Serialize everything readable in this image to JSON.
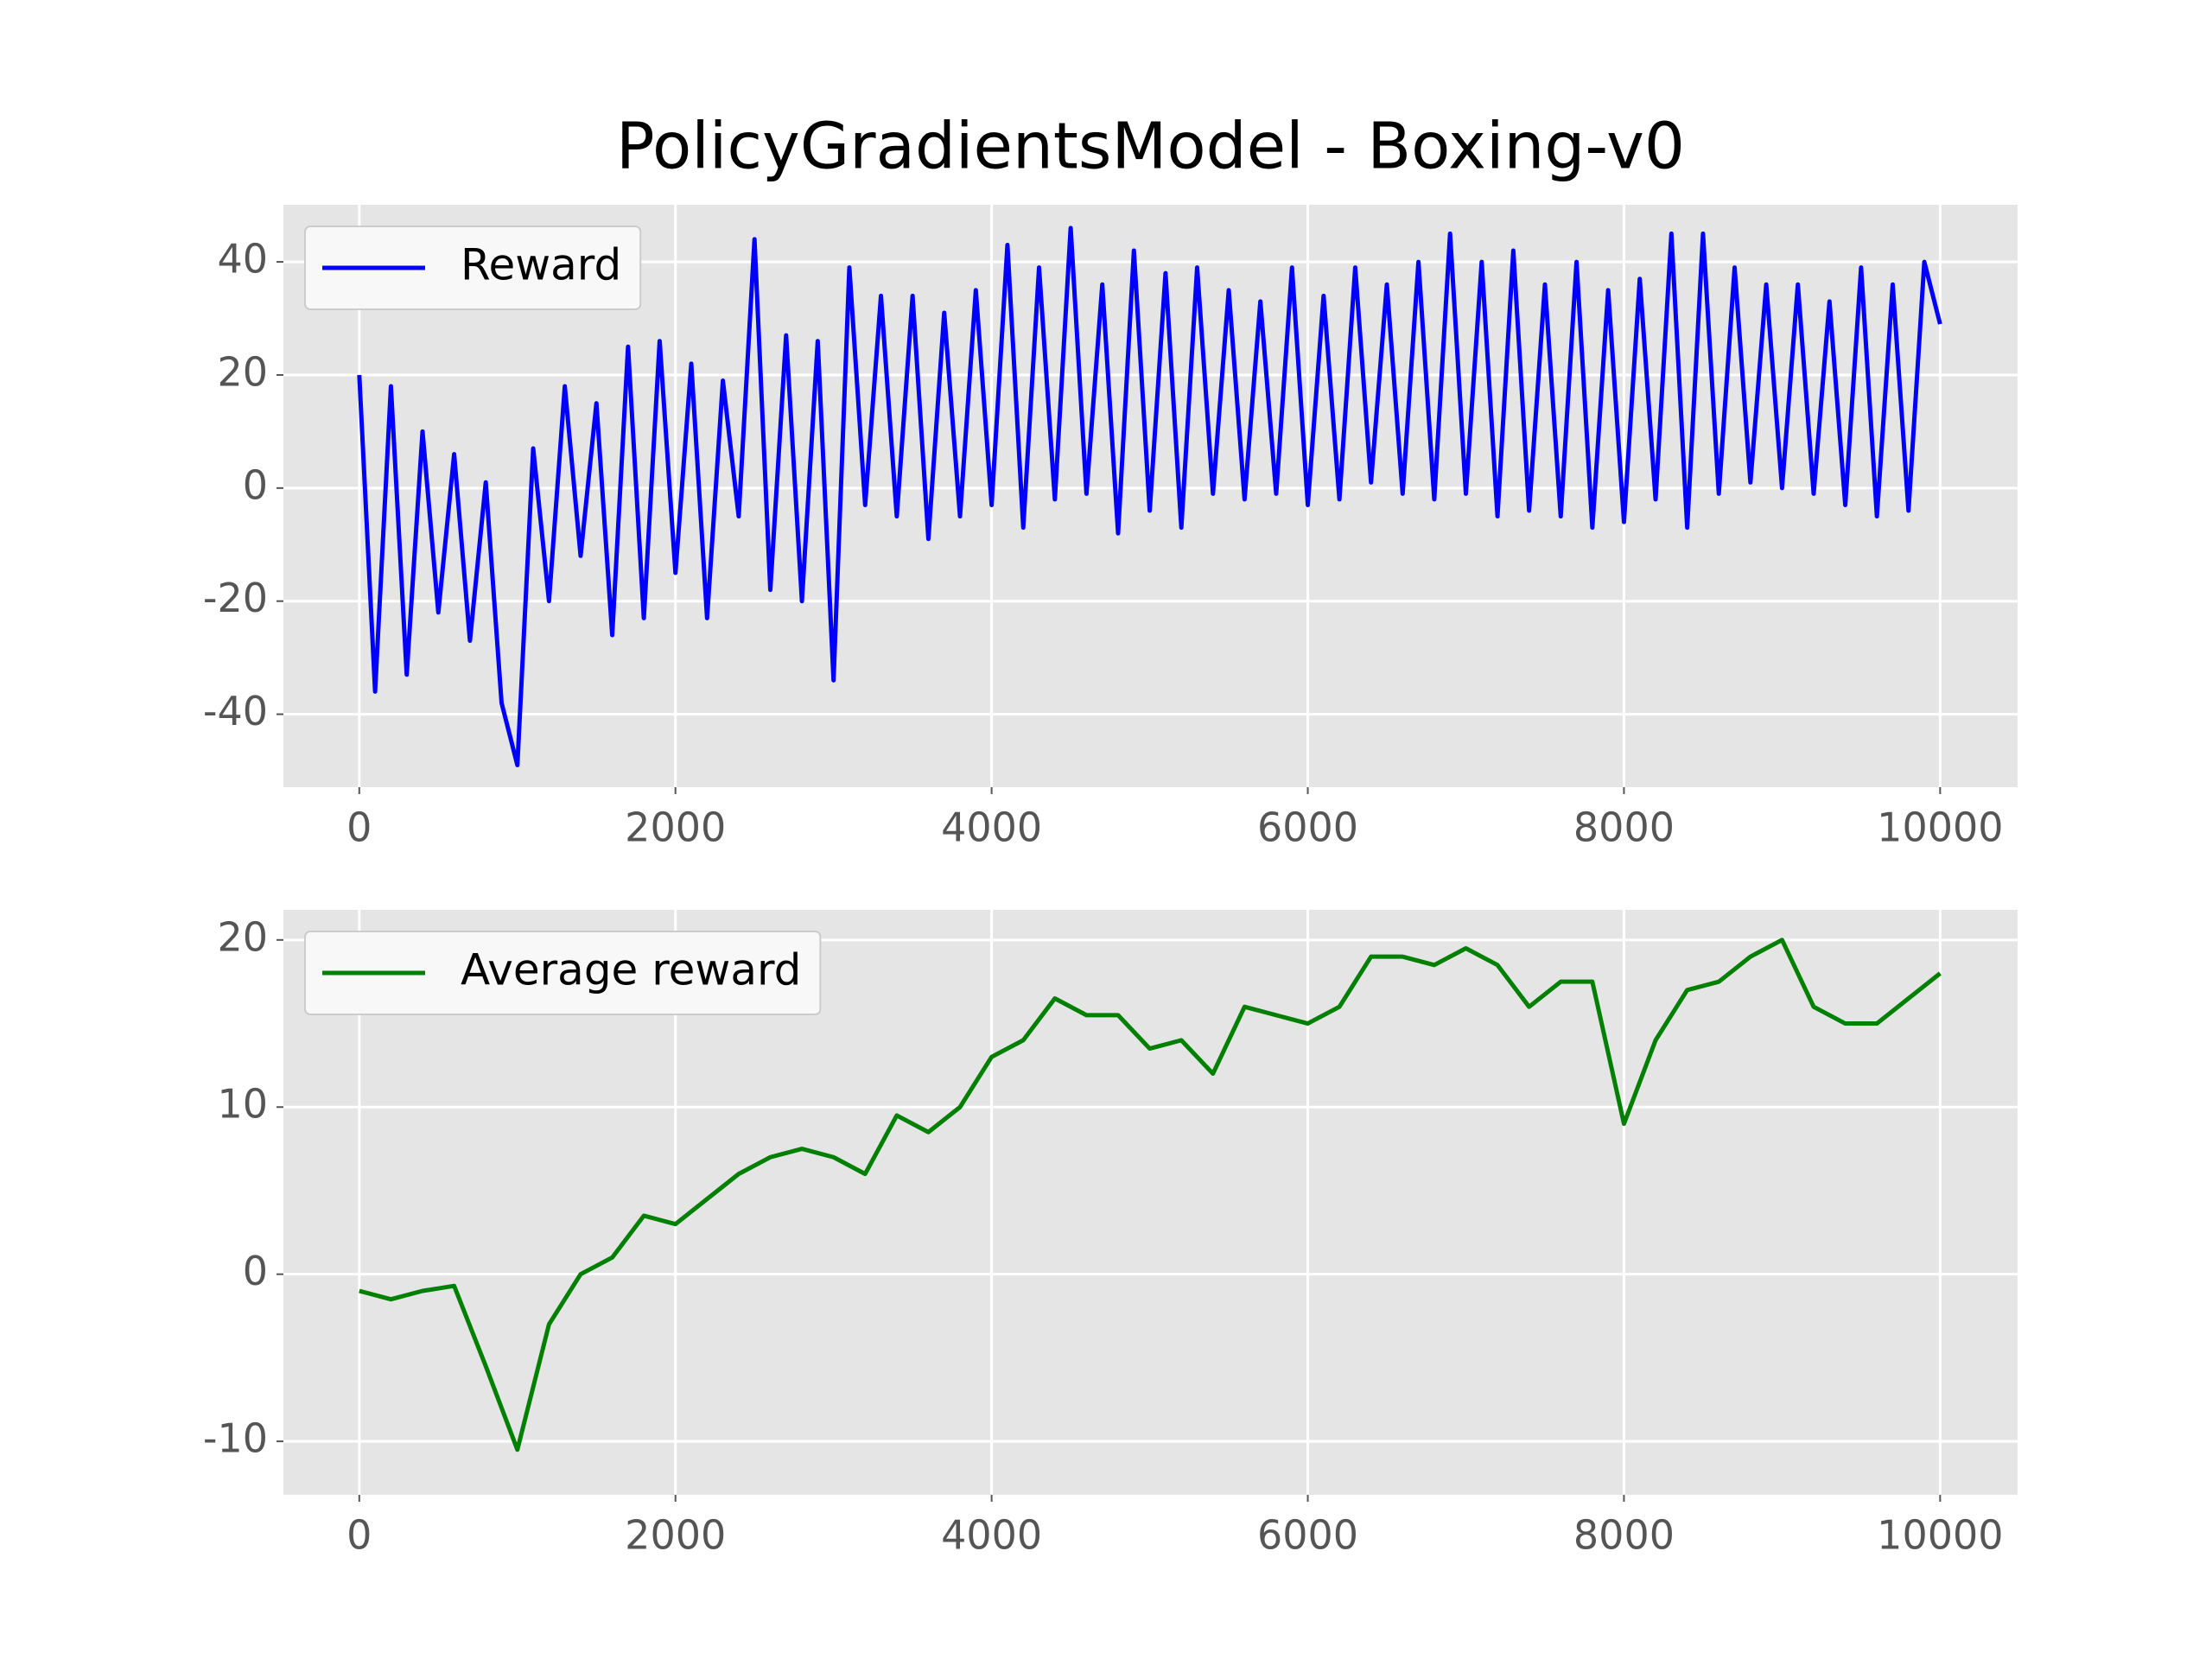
{
  "chart_data": [
    {
      "type": "line",
      "title": "PolicyGradientsModel - Boxing-v0",
      "x": [
        0,
        100,
        200,
        300,
        400,
        500,
        600,
        700,
        800,
        900,
        1000,
        1100,
        1200,
        1300,
        1400,
        1500,
        1600,
        1700,
        1800,
        1900,
        2000,
        2100,
        2200,
        2300,
        2400,
        2500,
        2600,
        2700,
        2800,
        2900,
        3000,
        3100,
        3200,
        3300,
        3400,
        3500,
        3600,
        3700,
        3800,
        3900,
        4000,
        4100,
        4200,
        4300,
        4400,
        4500,
        4600,
        4700,
        4800,
        4900,
        5000,
        5100,
        5200,
        5300,
        5400,
        5500,
        5600,
        5700,
        5800,
        5900,
        6000,
        6100,
        6200,
        6300,
        6400,
        6500,
        6600,
        6700,
        6800,
        6900,
        7000,
        7100,
        7200,
        7300,
        7400,
        7500,
        7600,
        7700,
        7800,
        7900,
        8000,
        8100,
        8200,
        8300,
        8400,
        8500,
        8600,
        8700,
        8800,
        8900,
        9000,
        9100,
        9200,
        9300,
        9400,
        9500,
        9600,
        9700,
        9800,
        9900,
        10000
      ],
      "series": [
        {
          "name": "Reward",
          "color": "#0000ff",
          "values": [
            20,
            -36,
            18,
            -33,
            10,
            -22,
            6,
            -27,
            1,
            -38,
            -49,
            7,
            -20,
            18,
            -12,
            15,
            -26,
            25,
            -23,
            26,
            -15,
            22,
            -23,
            19,
            -5,
            44,
            -18,
            27,
            -20,
            26,
            -34,
            39,
            -3,
            34,
            -5,
            34,
            -9,
            31,
            -5,
            35,
            -3,
            43,
            -7,
            39,
            -2,
            46,
            -1,
            36,
            -8,
            42,
            -4,
            38,
            -7,
            39,
            -1,
            35,
            -2,
            33,
            -1,
            39,
            -3,
            34,
            -2,
            39,
            1,
            36,
            -1,
            40,
            -2,
            45,
            -1,
            40,
            -5,
            42,
            -4,
            36,
            -5,
            40,
            -7,
            35,
            -6,
            37,
            -2,
            45,
            -7,
            45,
            -1,
            39,
            1,
            36,
            0,
            36,
            -1,
            33,
            -3,
            39,
            -5,
            36,
            -4,
            40,
            29
          ]
        }
      ],
      "xlim": [
        -480,
        10490
      ],
      "ylim": [
        -52.9,
        50.1
      ],
      "xticks": [
        0,
        2000,
        4000,
        6000,
        8000,
        10000
      ],
      "yticks": [
        -40,
        -20,
        0,
        20,
        40
      ],
      "grid": true,
      "legend": "upper left"
    },
    {
      "type": "line",
      "x": [
        0,
        200,
        400,
        600,
        800,
        1000,
        1200,
        1400,
        1600,
        1800,
        2000,
        2200,
        2400,
        2600,
        2800,
        3000,
        3200,
        3400,
        3600,
        3800,
        4000,
        4200,
        4400,
        4600,
        4800,
        5000,
        5200,
        5400,
        5600,
        5800,
        6000,
        6200,
        6400,
        6600,
        6800,
        7000,
        7200,
        7400,
        7600,
        7800,
        8000,
        8200,
        8400,
        8600,
        8800,
        9000,
        9200,
        9400,
        9600,
        9800,
        10000
      ],
      "series": [
        {
          "name": "Average reward",
          "color": "#008000",
          "values": [
            -1,
            -1.5,
            -1,
            -0.7,
            -5.5,
            -10.5,
            -3,
            0,
            1,
            3.5,
            3,
            4.5,
            6,
            7,
            7.5,
            7,
            6,
            9.5,
            8.5,
            10,
            13,
            14,
            16.5,
            15.5,
            15.5,
            13.5,
            14,
            12,
            16,
            15.5,
            15,
            16,
            19,
            19,
            18.5,
            19.5,
            18.5,
            16,
            17.5,
            17.5,
            9,
            14,
            17,
            17.5,
            19,
            20,
            16,
            15,
            15,
            16.5,
            18
          ]
        }
      ],
      "xlim": [
        -480,
        10490
      ],
      "ylim": [
        -13.2,
        21.8
      ],
      "xticks": [
        0,
        2000,
        4000,
        6000,
        8000,
        10000
      ],
      "yticks": [
        -10,
        0,
        10,
        20
      ],
      "grid": true,
      "legend": "upper left"
    }
  ]
}
